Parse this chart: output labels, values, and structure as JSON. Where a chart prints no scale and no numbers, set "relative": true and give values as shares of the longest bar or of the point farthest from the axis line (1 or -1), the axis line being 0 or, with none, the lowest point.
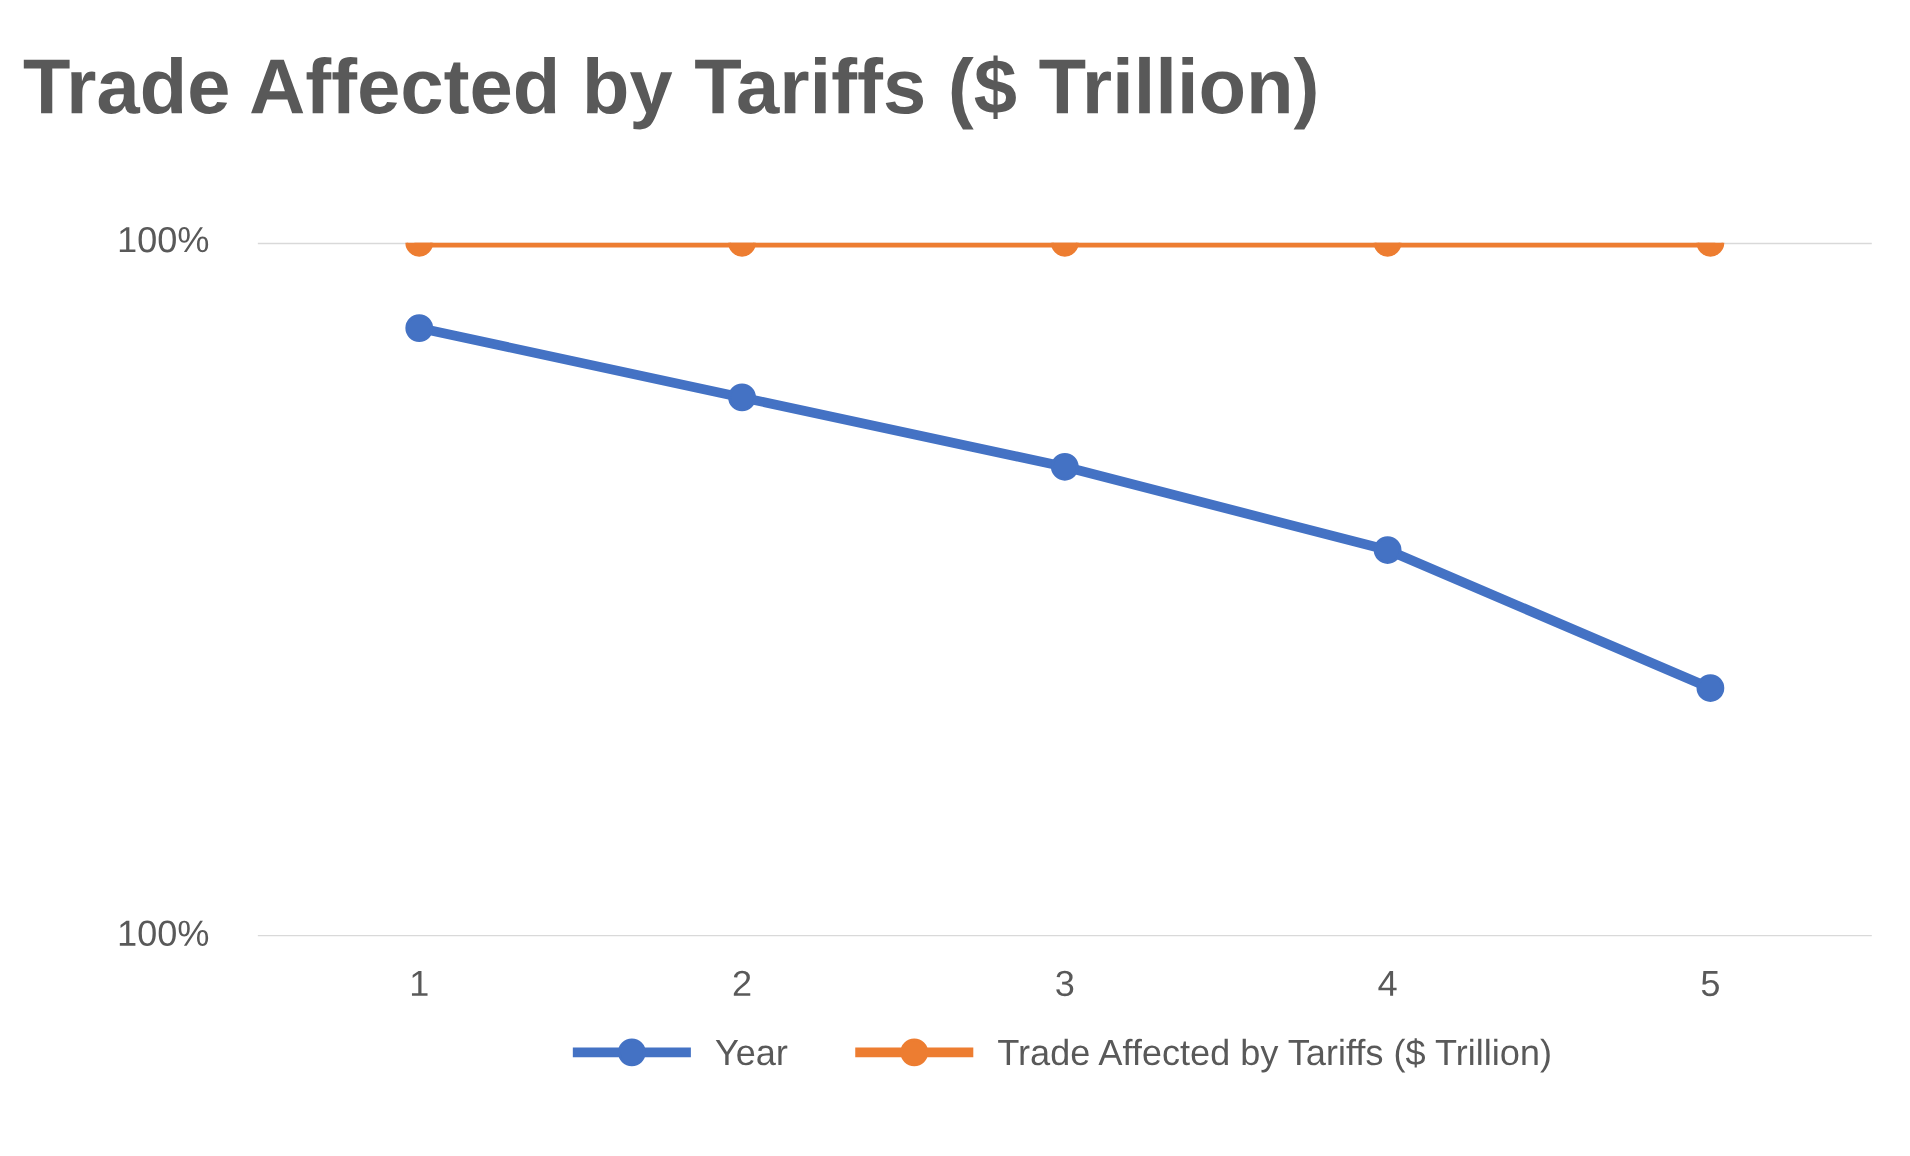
{
  "chart_data": {
    "type": "line",
    "title": "Trade Affected by Tariffs ($ Trillion)",
    "categories": [
      "1",
      "2",
      "3",
      "4",
      "5"
    ],
    "series": [
      {
        "name": "Year",
        "color": "#4472c4",
        "values": [
          0.877,
          0.777,
          0.677,
          0.557,
          0.358
        ]
      },
      {
        "name": "Trade Affected by Tariffs ($ Trillion)",
        "color": "#ed7d31",
        "values": [
          1,
          1,
          1,
          1,
          1
        ]
      }
    ],
    "relative": true,
    "annotations": [
      "100%",
      "100%"
    ],
    "legend": "bottom",
    "marker": "circle",
    "line_style": "solid"
  }
}
